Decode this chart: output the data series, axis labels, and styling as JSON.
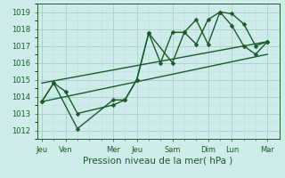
{
  "xlabel": "Pression niveau de la mer( hPa )",
  "bg_color": "#cdecea",
  "grid_color_major": "#aacfcc",
  "grid_color_minor": "#c2e3e0",
  "line_color": "#1a5c28",
  "ylim": [
    1011.5,
    1019.5
  ],
  "yticks": [
    1012,
    1013,
    1014,
    1015,
    1016,
    1017,
    1018,
    1019
  ],
  "xtick_labels": [
    "Jeu",
    "Ven",
    "Mer",
    "Jeu",
    "Sam",
    "Dim",
    "Lun",
    "Mar"
  ],
  "xtick_positions": [
    0,
    1,
    3,
    4,
    5.5,
    7,
    8,
    9.5
  ],
  "xlim": [
    -0.2,
    10.0
  ],
  "line1_x": [
    0,
    0.5,
    1,
    1.5,
    3,
    3.5,
    4,
    4.5,
    5.5,
    6.0,
    6.5,
    7.0,
    7.5,
    8.0,
    8.5,
    9.0,
    9.5
  ],
  "line1_y": [
    1013.7,
    1014.8,
    1014.3,
    1013.0,
    1013.5,
    1013.8,
    1015.0,
    1017.75,
    1016.0,
    1017.8,
    1018.55,
    1017.1,
    1019.0,
    1018.9,
    1018.3,
    1017.0,
    1017.25
  ],
  "line2_x": [
    0,
    0.5,
    1.5,
    3,
    3.5,
    4.0,
    4.5,
    5.0,
    5.5,
    6.0,
    6.5,
    7.0,
    7.5,
    8.0,
    8.5,
    9.0,
    9.5
  ],
  "line2_y": [
    1013.7,
    1014.8,
    1012.1,
    1013.8,
    1013.8,
    1015.0,
    1017.75,
    1016.0,
    1017.8,
    1017.8,
    1017.1,
    1018.55,
    1019.0,
    1018.2,
    1017.0,
    1016.5,
    1017.25
  ],
  "line3_x": [
    0,
    9.5
  ],
  "line3_y": [
    1013.7,
    1016.5
  ],
  "line4_x": [
    0,
    9.5
  ],
  "line4_y": [
    1014.8,
    1017.25
  ],
  "marker_size": 2.5,
  "line_width": 1.0,
  "tick_fontsize": 6,
  "xlabel_fontsize": 7.5
}
